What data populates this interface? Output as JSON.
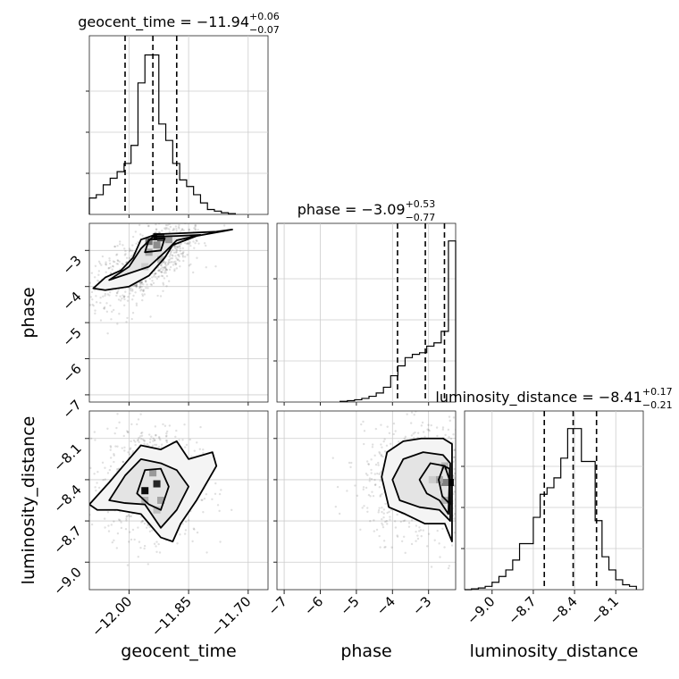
{
  "chart_data": {
    "type": "corner",
    "parameters": [
      {
        "name": "geocent_time",
        "label": "geocent_time",
        "range": [
          -12.1,
          -11.65
        ],
        "ticks": [
          -12.0,
          -11.85,
          -11.7
        ],
        "tick_labels": [
          "−12.00",
          "−11.85",
          "−11.70"
        ],
        "title_main": "geocent_time = −11.94",
        "title_plus": "+0.06",
        "title_minus": "−0.07",
        "median": -11.94,
        "q_low": -12.01,
        "q_high": -11.88,
        "hist": {
          "edges": [
            -12.1,
            -12.0825,
            -12.065,
            -12.0475,
            -12.03,
            -12.0125,
            -11.995,
            -11.9775,
            -11.96,
            -11.9425,
            -11.925,
            -11.9075,
            -11.89,
            -11.8725,
            -11.855,
            -11.8375,
            -11.82,
            -11.8025,
            -11.785,
            -11.7675,
            -11.75,
            -11.7325
          ],
          "counts": [
            0.1,
            0.12,
            0.18,
            0.22,
            0.26,
            0.31,
            0.42,
            0.8,
            0.97,
            0.97,
            0.55,
            0.45,
            0.31,
            0.21,
            0.17,
            0.12,
            0.07,
            0.03,
            0.02,
            0.01,
            0.005
          ]
        }
      },
      {
        "name": "phase",
        "label": "phase",
        "range": [
          -7.2,
          -2.25
        ],
        "ticks": [
          -7,
          -6,
          -5,
          -4,
          -3
        ],
        "tick_labels": [
          "−7",
          "−6",
          "−5",
          "−4",
          "−3"
        ],
        "title_main": "phase = −3.09",
        "title_plus": "+0.53",
        "title_minus": "−0.77",
        "median": -3.09,
        "q_low": -3.86,
        "q_high": -2.56,
        "hist": {
          "edges": [
            -5.45,
            -5.25,
            -5.05,
            -4.85,
            -4.65,
            -4.45,
            -4.25,
            -4.05,
            -3.85,
            -3.65,
            -3.45,
            -3.25,
            -3.05,
            -2.85,
            -2.65,
            -2.45,
            -2.25
          ],
          "counts": [
            0.004,
            0.008,
            0.014,
            0.022,
            0.035,
            0.055,
            0.09,
            0.16,
            0.22,
            0.27,
            0.29,
            0.3,
            0.34,
            0.36,
            0.43,
            0.98
          ]
        }
      },
      {
        "name": "luminosity_distance",
        "label": "luminosity_distance",
        "range": [
          -9.2,
          -7.9
        ],
        "ticks": [
          -9.0,
          -8.7,
          -8.4,
          -8.1
        ],
        "tick_labels": [
          "−9.0",
          "−8.7",
          "−8.4",
          "−8.1"
        ],
        "title_main": "luminosity_distance = −8.41",
        "title_plus": "+0.17",
        "title_minus": "−0.21",
        "median": -8.41,
        "q_low": -8.62,
        "q_high": -8.24,
        "hist": {
          "edges": [
            -9.2,
            -9.15,
            -9.1,
            -9.05,
            -9.0,
            -8.95,
            -8.9,
            -8.85,
            -8.8,
            -8.75,
            -8.7,
            -8.65,
            -8.6,
            -8.55,
            -8.5,
            -8.45,
            -8.4,
            -8.35,
            -8.3,
            -8.25,
            -8.2,
            -8.15,
            -8.1,
            -8.05,
            -8.0,
            -7.95
          ],
          "counts": [
            0.0,
            0.005,
            0.01,
            0.02,
            0.045,
            0.08,
            0.12,
            0.18,
            0.28,
            0.28,
            0.44,
            0.58,
            0.62,
            0.68,
            0.8,
            0.98,
            0.98,
            0.78,
            0.78,
            0.42,
            0.2,
            0.12,
            0.06,
            0.03,
            0.02
          ]
        }
      }
    ],
    "pairs": [
      {
        "x": "geocent_time",
        "y": "phase",
        "y_ticks": [
          -7,
          -6,
          -5,
          -4,
          -3
        ],
        "y_tick_labels": [
          "−7",
          "−6",
          "−5",
          "−4",
          "−3"
        ],
        "y_range": [
          -7.2,
          -2.25
        ],
        "levels": [
          [
            [
              -12.09,
              -4.05
            ],
            [
              -12.06,
              -3.75
            ],
            [
              -12.02,
              -3.55
            ],
            [
              -11.99,
              -3.2
            ],
            [
              -11.97,
              -2.7
            ],
            [
              -11.93,
              -2.55
            ],
            [
              -11.86,
              -2.52
            ],
            [
              -11.78,
              -2.48
            ],
            [
              -11.74,
              -2.42
            ],
            [
              -11.83,
              -2.6
            ],
            [
              -11.89,
              -2.85
            ],
            [
              -11.91,
              -3.2
            ],
            [
              -11.95,
              -3.7
            ],
            [
              -12.0,
              -4.0
            ],
            [
              -12.06,
              -4.1
            ]
          ],
          [
            [
              -12.05,
              -3.82
            ],
            [
              -12.0,
              -3.45
            ],
            [
              -11.97,
              -2.95
            ],
            [
              -11.94,
              -2.62
            ],
            [
              -11.88,
              -2.6
            ],
            [
              -11.82,
              -2.57
            ],
            [
              -11.88,
              -2.72
            ],
            [
              -11.91,
              -3.05
            ],
            [
              -11.95,
              -3.45
            ]
          ],
          [
            [
              -11.96,
              -3.05
            ],
            [
              -11.95,
              -2.7
            ],
            [
              -11.91,
              -2.66
            ],
            [
              -11.92,
              -3.0
            ]
          ]
        ],
        "density_cells": [
          [
            -11.93,
            -2.62,
            0.95
          ],
          [
            -11.92,
            -2.65,
            0.75
          ],
          [
            -11.95,
            -2.75,
            0.55
          ],
          [
            -11.93,
            -2.85,
            0.45
          ],
          [
            -11.95,
            -3.05,
            0.35
          ],
          [
            -11.92,
            -3.25,
            0.25
          ],
          [
            -11.96,
            -3.45,
            0.2
          ],
          [
            -11.9,
            -2.7,
            0.4
          ]
        ],
        "scatter_center": [
          -11.95,
          -3.3
        ],
        "scatter_spread": [
          0.07,
          0.75
        ]
      },
      {
        "x": "geocent_time",
        "y": "luminosity_distance",
        "y_ticks": [
          -9.0,
          -8.7,
          -8.4,
          -8.1
        ],
        "y_tick_labels": [
          "−9.0",
          "−8.7",
          "−8.4",
          "−8.1"
        ],
        "y_range": [
          -9.2,
          -7.9
        ],
        "levels": [
          [
            [
              -12.1,
              -8.58
            ],
            [
              -12.05,
              -8.42
            ],
            [
              -12.0,
              -8.25
            ],
            [
              -11.97,
              -8.15
            ],
            [
              -11.92,
              -8.18
            ],
            [
              -11.88,
              -8.12
            ],
            [
              -11.85,
              -8.25
            ],
            [
              -11.79,
              -8.2
            ],
            [
              -11.78,
              -8.3
            ],
            [
              -11.83,
              -8.55
            ],
            [
              -11.87,
              -8.72
            ],
            [
              -11.89,
              -8.85
            ],
            [
              -11.92,
              -8.82
            ],
            [
              -11.97,
              -8.65
            ],
            [
              -12.03,
              -8.62
            ],
            [
              -12.08,
              -8.62
            ]
          ],
          [
            [
              -12.05,
              -8.55
            ],
            [
              -12.01,
              -8.37
            ],
            [
              -11.97,
              -8.25
            ],
            [
              -11.92,
              -8.28
            ],
            [
              -11.88,
              -8.33
            ],
            [
              -11.85,
              -8.45
            ],
            [
              -11.88,
              -8.62
            ],
            [
              -11.92,
              -8.75
            ],
            [
              -11.96,
              -8.58
            ],
            [
              -12.01,
              -8.57
            ]
          ],
          [
            [
              -11.98,
              -8.5
            ],
            [
              -11.96,
              -8.33
            ],
            [
              -11.92,
              -8.32
            ],
            [
              -11.9,
              -8.45
            ],
            [
              -11.92,
              -8.62
            ],
            [
              -11.95,
              -8.58
            ]
          ]
        ],
        "density_cells": [
          [
            -11.96,
            -8.48,
            0.95
          ],
          [
            -11.93,
            -8.43,
            0.85
          ],
          [
            -11.94,
            -8.35,
            0.4
          ],
          [
            -11.96,
            -8.55,
            0.3
          ],
          [
            -11.92,
            -8.55,
            0.35
          ],
          [
            -11.93,
            -8.62,
            0.25
          ]
        ],
        "scatter_center": [
          -11.94,
          -8.42
        ],
        "scatter_spread": [
          0.06,
          0.2
        ]
      },
      {
        "x": "phase",
        "y": "luminosity_distance",
        "y_range": [
          -9.2,
          -7.9
        ],
        "levels": [
          [
            [
              -4.3,
              -8.38
            ],
            [
              -4.15,
              -8.2
            ],
            [
              -3.7,
              -8.12
            ],
            [
              -3.2,
              -8.1
            ],
            [
              -2.6,
              -8.1
            ],
            [
              -2.35,
              -8.14
            ],
            [
              -2.35,
              -8.85
            ],
            [
              -2.55,
              -8.72
            ],
            [
              -3.1,
              -8.72
            ],
            [
              -3.65,
              -8.65
            ],
            [
              -4.1,
              -8.6
            ]
          ],
          [
            [
              -4.0,
              -8.4
            ],
            [
              -3.7,
              -8.25
            ],
            [
              -3.15,
              -8.2
            ],
            [
              -2.6,
              -8.22
            ],
            [
              -2.4,
              -8.28
            ],
            [
              -2.4,
              -8.7
            ],
            [
              -2.7,
              -8.62
            ],
            [
              -3.25,
              -8.6
            ],
            [
              -3.8,
              -8.55
            ]
          ],
          [
            [
              -3.25,
              -8.4
            ],
            [
              -2.95,
              -8.28
            ],
            [
              -2.55,
              -8.3
            ],
            [
              -2.42,
              -8.4
            ],
            [
              -2.45,
              -8.65
            ],
            [
              -2.7,
              -8.55
            ],
            [
              -3.05,
              -8.5
            ]
          ],
          [
            [
              -2.72,
              -8.4
            ],
            [
              -2.58,
              -8.3
            ],
            [
              -2.42,
              -8.32
            ],
            [
              -2.4,
              -8.58
            ],
            [
              -2.62,
              -8.52
            ]
          ]
        ],
        "density_cells": [
          [
            -2.4,
            -8.42,
            0.95
          ],
          [
            -2.55,
            -8.42,
            0.5
          ],
          [
            -2.7,
            -8.4,
            0.35
          ],
          [
            -2.55,
            -8.3,
            0.3
          ],
          [
            -2.55,
            -8.55,
            0.3
          ],
          [
            -2.9,
            -8.4,
            0.2
          ]
        ],
        "scatter_center": [
          -3.0,
          -8.42
        ],
        "scatter_spread": [
          0.9,
          0.2
        ]
      }
    ]
  }
}
